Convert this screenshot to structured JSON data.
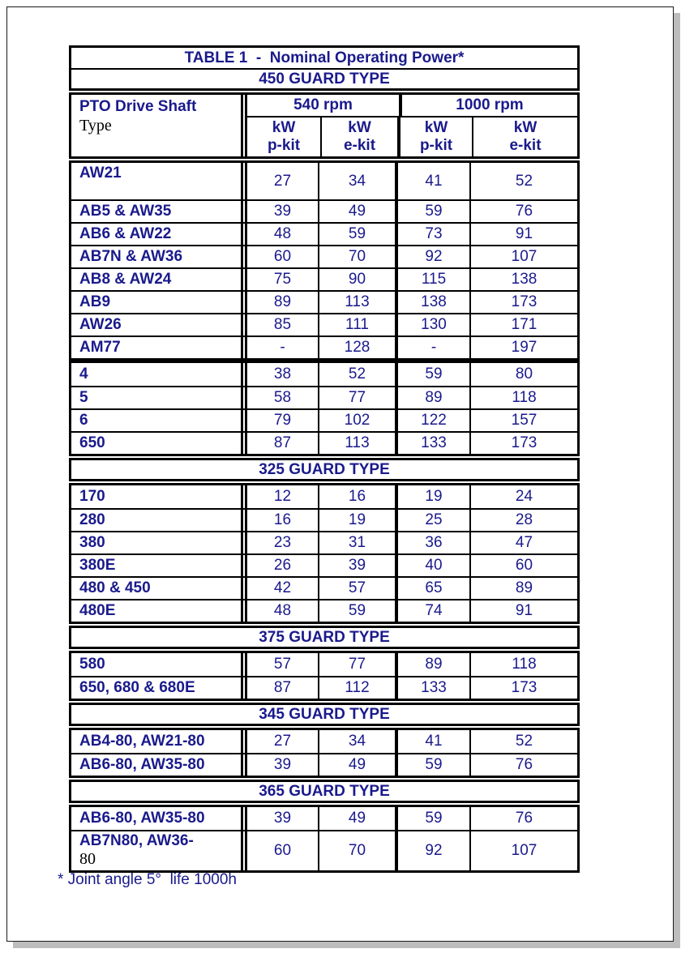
{
  "title": "TABLE 1  -  Nominal Operating Power*",
  "footnote": "* Joint angle 5°  life 1000h",
  "colors": {
    "text_navy": "#1a1a8c",
    "border_black": "#000000",
    "shadow_gray": "#bdbdbd"
  },
  "header": {
    "col1_line1": "PTO Drive Shaft",
    "col1_line2": "Type",
    "speed_groups": [
      "540 rpm",
      "1000 rpm"
    ],
    "unit": "kW",
    "subcols": [
      "p-kit",
      "e-kit",
      "p-kit",
      "e-kit"
    ]
  },
  "sections": [
    {
      "guard": "450 GUARD TYPE",
      "row_groups": [
        {
          "rows": [
            {
              "type": "AW21",
              "values": [
                "27",
                "34",
                "41",
                "52"
              ],
              "tall": true
            },
            {
              "type": "AB5 & AW35",
              "values": [
                "39",
                "49",
                "59",
                "76"
              ]
            },
            {
              "type": "AB6 & AW22",
              "values": [
                "48",
                "59",
                "73",
                "91"
              ]
            },
            {
              "type": "AB7N & AW36",
              "values": [
                "60",
                "70",
                "92",
                "107"
              ]
            },
            {
              "type": "AB8 & AW24",
              "values": [
                "75",
                "90",
                "115",
                "138"
              ]
            },
            {
              "type": "AB9",
              "values": [
                "89",
                "113",
                "138",
                "173"
              ]
            },
            {
              "type": "AW26",
              "values": [
                "85",
                "111",
                "130",
                "171"
              ]
            },
            {
              "type": "AM77",
              "values": [
                "-",
                "128",
                "-",
                "197"
              ]
            }
          ]
        },
        {
          "rows": [
            {
              "type": "4",
              "values": [
                "38",
                "52",
                "59",
                "80"
              ]
            },
            {
              "type": "5",
              "values": [
                "58",
                "77",
                "89",
                "118"
              ]
            },
            {
              "type": "6",
              "values": [
                "79",
                "102",
                "122",
                "157"
              ]
            },
            {
              "type": "650",
              "values": [
                "87",
                "113",
                "133",
                "173"
              ]
            }
          ]
        }
      ]
    },
    {
      "guard": "325 GUARD TYPE",
      "row_groups": [
        {
          "rows": [
            {
              "type": "170",
              "values": [
                "12",
                "16",
                "19",
                "24"
              ]
            },
            {
              "type": "280",
              "values": [
                "16",
                "19",
                "25",
                "28"
              ]
            },
            {
              "type": "380",
              "values": [
                "23",
                "31",
                "36",
                "47"
              ]
            },
            {
              "type": "380E",
              "values": [
                "26",
                "39",
                "40",
                "60"
              ]
            },
            {
              "type": "480 & 450",
              "values": [
                "42",
                "57",
                "65",
                "89"
              ]
            },
            {
              "type": "480E",
              "values": [
                "48",
                "59",
                "74",
                "91"
              ]
            }
          ]
        }
      ]
    },
    {
      "guard": "375 GUARD TYPE",
      "row_groups": [
        {
          "rows": [
            {
              "type": "580",
              "values": [
                "57",
                "77",
                "89",
                "118"
              ]
            },
            {
              "type": "650, 680 & 680E",
              "values": [
                "87",
                "112",
                "133",
                "173"
              ]
            }
          ]
        }
      ]
    },
    {
      "guard": "345 GUARD TYPE",
      "row_groups": [
        {
          "rows": [
            {
              "type": "AB4-80, AW21-80",
              "values": [
                "27",
                "34",
                "41",
                "52"
              ]
            },
            {
              "type": "AB6-80, AW35-80",
              "values": [
                "39",
                "49",
                "59",
                "76"
              ]
            }
          ]
        }
      ]
    },
    {
      "guard": "365 GUARD TYPE",
      "row_groups": [
        {
          "rows": [
            {
              "type": "AB6-80, AW35-80",
              "values": [
                "39",
                "49",
                "59",
                "76"
              ]
            },
            {
              "type": "AB7N80, AW36-",
              "type_line2": "80",
              "values": [
                "60",
                "70",
                "92",
                "107"
              ],
              "tall2": true
            }
          ]
        }
      ]
    }
  ]
}
